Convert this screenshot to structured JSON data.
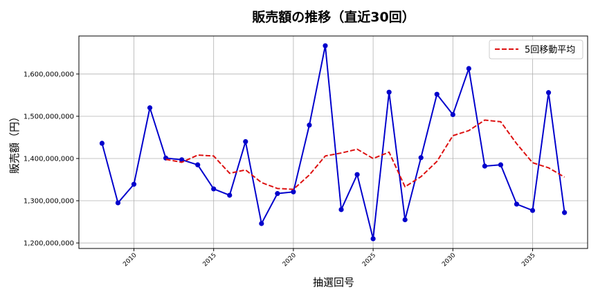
{
  "chart_data": {
    "type": "line",
    "title": "販売額の推移（直近30回）",
    "xlabel": "抽選回号",
    "ylabel": "販売額（円）",
    "x": [
      2008,
      2009,
      2010,
      2011,
      2012,
      2013,
      2014,
      2015,
      2016,
      2017,
      2018,
      2019,
      2020,
      2021,
      2022,
      2023,
      2024,
      2025,
      2026,
      2027,
      2028,
      2029,
      2030,
      2031,
      2032,
      2033,
      2034,
      2035,
      2036,
      2037
    ],
    "series": [
      {
        "values": [
          1436000000,
          1295000000,
          1339000000,
          1520000000,
          1401000000,
          1397000000,
          1385000000,
          1328000000,
          1313000000,
          1440000000,
          1246000000,
          1317000000,
          1321000000,
          1479000000,
          1667000000,
          1279000000,
          1362000000,
          1210000000,
          1557000000,
          1255000000,
          1402000000,
          1552000000,
          1504000000,
          1613000000,
          1382000000,
          1385000000,
          1292000000,
          1277000000,
          1556000000,
          1272000000
        ],
        "color": "#0000cc",
        "style": "solid-with-markers"
      },
      {
        "name": "5回移動平均",
        "x": [
          2012,
          2013,
          2014,
          2015,
          2016,
          2017,
          2018,
          2019,
          2020,
          2021,
          2022,
          2023,
          2024,
          2025,
          2026,
          2027,
          2028,
          2029,
          2030,
          2031,
          2032,
          2033,
          2034,
          2035,
          2036,
          2037
        ],
        "values": [
          1398000000,
          1391000000,
          1408000000,
          1406000000,
          1365000000,
          1373000000,
          1343000000,
          1329000000,
          1327000000,
          1361000000,
          1406000000,
          1413000000,
          1422000000,
          1400000000,
          1415000000,
          1333000000,
          1357000000,
          1393000000,
          1454000000,
          1466000000,
          1491000000,
          1487000000,
          1435000000,
          1390000000,
          1378000000,
          1356000000
        ],
        "color": "#dd1111",
        "style": "dashed"
      }
    ],
    "x_ticks": [
      2010,
      2015,
      2020,
      2025,
      2030,
      2035
    ],
    "y_ticks": [
      1200000000,
      1300000000,
      1400000000,
      1500000000,
      1600000000
    ],
    "y_tick_labels": [
      "1,200,000,000",
      "1,300,000,000",
      "1,400,000,000",
      "1,500,000,000",
      "1,600,000,000"
    ],
    "xlim": [
      2006.55,
      2038.45
    ],
    "ylim": [
      1187000000,
      1690000000
    ],
    "grid": true,
    "legend_position": "top-right"
  }
}
